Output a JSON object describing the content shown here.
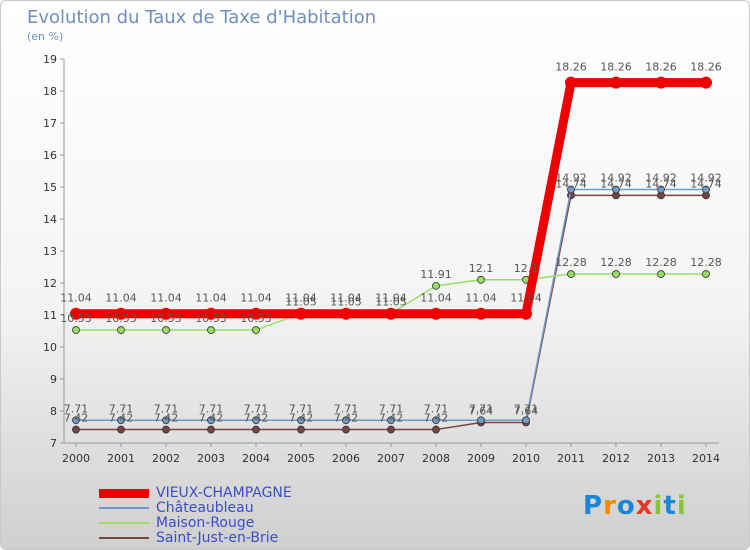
{
  "chart_data": {
    "type": "line",
    "title": "Evolution du Taux de Taxe d'Habitation",
    "ylabel": "(en %)",
    "xlabel": "",
    "ylim": [
      7,
      19
    ],
    "yticks": [
      7,
      8,
      9,
      10,
      11,
      12,
      13,
      14,
      15,
      16,
      17,
      18,
      19
    ],
    "x": [
      "2000",
      "2001",
      "2002",
      "2003",
      "2004",
      "2005",
      "2006",
      "2007",
      "2008",
      "2009",
      "2010",
      "2011",
      "2012",
      "2013",
      "2014"
    ],
    "grid": false,
    "legend_position": "bottom-left",
    "series": [
      {
        "name": "VIEUX-CHAMPAGNE",
        "color": "#ee0000",
        "values": [
          11.04,
          11.04,
          11.04,
          11.04,
          11.04,
          11.04,
          11.04,
          11.04,
          11.04,
          11.04,
          11.04,
          18.26,
          18.26,
          18.26,
          18.26
        ],
        "labels": [
          "11.04",
          "11.04",
          "11.04",
          "11.04",
          "11.04",
          "11.04",
          "11.04",
          "11.04",
          "11.04",
          "11.04",
          "11.04",
          "18.26",
          "18.26",
          "18.26",
          "18.26"
        ]
      },
      {
        "name": "Châteaubleau",
        "color": "#6f9ac6",
        "values": [
          7.71,
          7.71,
          7.71,
          7.71,
          7.71,
          7.71,
          7.71,
          7.71,
          7.71,
          7.71,
          7.71,
          14.92,
          14.92,
          14.92,
          14.92
        ],
        "labels": [
          "7.71",
          "7.71",
          "7.71",
          "7.71",
          "7.71",
          "7.71",
          "7.71",
          "7.71",
          "7.71",
          "7.71",
          "7.71",
          "14.92",
          "14.92",
          "14.92",
          "14.92"
        ]
      },
      {
        "name": "Maison-Rouge",
        "color": "#99dd66",
        "values": [
          10.53,
          10.53,
          10.53,
          10.53,
          10.53,
          11.05,
          11.05,
          11.05,
          11.91,
          12.1,
          12.1,
          12.28,
          12.28,
          12.28,
          12.28
        ],
        "labels": [
          "10.53",
          "10.53",
          "10.53",
          "10.53",
          "10.53",
          "11.05",
          "11.05",
          "11.05",
          "11.91",
          "12.1",
          "12.1",
          "12.28",
          "12.28",
          "12.28",
          "12.28"
        ]
      },
      {
        "name": "Saint-Just-en-Brie",
        "color": "#774444",
        "values": [
          7.42,
          7.42,
          7.42,
          7.42,
          7.42,
          7.42,
          7.42,
          7.42,
          7.42,
          7.64,
          7.64,
          14.74,
          14.74,
          14.74,
          14.74
        ],
        "labels": [
          "7.42",
          "7.42",
          "7.42",
          "7.42",
          "7.42",
          "7.42",
          "7.42",
          "7.42",
          "7.42",
          "7.64",
          "7.64",
          "14.74",
          "14.74",
          "14.74",
          "14.74"
        ]
      }
    ]
  },
  "logo": {
    "text": "Proxiti",
    "letter_colors": [
      "#1c86d6",
      "#f08a00",
      "#1c86d6",
      "#e23a2a",
      "#8ac43f",
      "#1c86d6",
      "#8ac43f"
    ]
  }
}
